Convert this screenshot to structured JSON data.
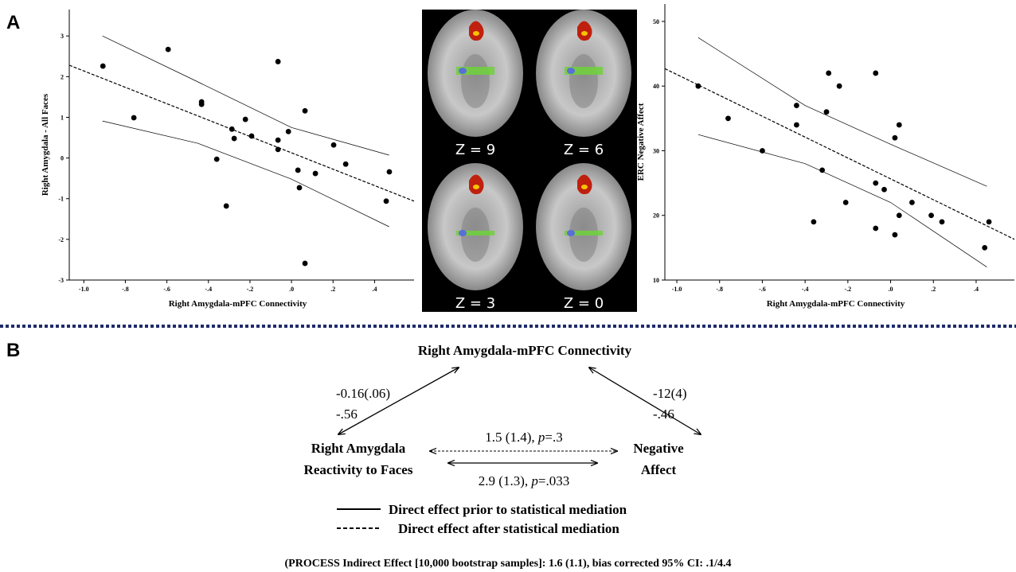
{
  "panel_labels": [
    "A",
    "B"
  ],
  "chart_data": [
    {
      "type": "scatter",
      "x_label": "Right Amygdala-mPFC Connectivity",
      "y_label": "Right Amygdala - All Faces",
      "color": "#000000",
      "x": [
        -0.908,
        -0.759,
        -0.594,
        -0.433,
        -0.433,
        -0.36,
        -0.314,
        -0.287,
        -0.276,
        -0.222,
        -0.192,
        -0.065,
        -0.065,
        -0.065,
        -0.015,
        0.031,
        0.038,
        0.065,
        0.065,
        0.115,
        0.203,
        0.261,
        0.456,
        0.471
      ],
      "y": [
        2.26,
        0.99,
        2.67,
        1.38,
        1.32,
        -0.03,
        -1.18,
        0.71,
        0.48,
        0.95,
        0.54,
        0.44,
        0.21,
        2.37,
        0.65,
        -0.3,
        -0.73,
        1.16,
        -2.59,
        -0.38,
        0.32,
        -0.15,
        -1.06,
        -0.34
      ],
      "xlim": [
        -1.07,
        0.59
      ],
      "ylim": [
        -3,
        3.65
      ],
      "xticks": [
        {
          "value": -1.0,
          "label": "-1.0"
        },
        {
          "value": -0.8,
          "label": "-.8"
        },
        {
          "value": -0.6,
          "label": "-.6"
        },
        {
          "value": -0.4,
          "label": "-.4"
        },
        {
          "value": -0.2,
          "label": "-.2"
        },
        {
          "value": 0,
          "label": ".0"
        },
        {
          "value": 0.2,
          "label": ".2"
        },
        {
          "value": 0.4,
          "label": ".4"
        }
      ],
      "yticks": [
        -3,
        -2,
        -1,
        0,
        1,
        2,
        3
      ],
      "fit_line": {
        "style": "dashed",
        "x": [
          -1.07,
          0.59
        ],
        "y": [
          2.28,
          -1.06
        ]
      },
      "ci_upper": {
        "x": [
          -0.91,
          -0.45,
          0,
          0.47
        ],
        "y": [
          3.0,
          1.87,
          0.75,
          0.07
        ]
      },
      "ci_lower": {
        "x": [
          -0.91,
          -0.45,
          0,
          0.47
        ],
        "y": [
          0.91,
          0.36,
          -0.52,
          -1.69
        ]
      }
    },
    {
      "type": "scatter",
      "x_label": "Right Amygdala-mPFC Connectivity",
      "y_label": "ERC Negative Affect",
      "color": "#000000",
      "x": [
        -0.9,
        -0.76,
        -0.6,
        -0.44,
        -0.44,
        -0.32,
        -0.36,
        -0.3,
        -0.29,
        -0.24,
        -0.21,
        -0.07,
        -0.07,
        -0.07,
        -0.03,
        0.02,
        0.02,
        0.04,
        0.04,
        0.1,
        0.19,
        0.24,
        0.44,
        0.46
      ],
      "y": [
        40,
        35,
        30,
        37,
        34,
        27,
        19,
        36,
        42,
        40,
        22,
        42,
        25,
        18,
        24,
        32,
        17,
        34,
        20,
        22,
        20,
        19,
        15,
        19
      ],
      "xlim": [
        -1.056,
        0.579
      ],
      "ylim": [
        10,
        52.7
      ],
      "xticks": [
        {
          "value": -1.0,
          "label": "-1.0"
        },
        {
          "value": -0.8,
          "label": "-.8"
        },
        {
          "value": -0.6,
          "label": "-.6"
        },
        {
          "value": -0.4,
          "label": "-.4"
        },
        {
          "value": -0.2,
          "label": "-.2"
        },
        {
          "value": 0,
          "label": ".0"
        },
        {
          "value": 0.2,
          "label": ".2"
        },
        {
          "value": 0.4,
          "label": ".4"
        }
      ],
      "yticks": [
        10,
        20,
        30,
        40,
        50
      ],
      "fit_line": {
        "style": "dashed",
        "x": [
          -1.056,
          0.579
        ],
        "y": [
          42.7,
          16.3
        ]
      },
      "ci_upper": {
        "x": [
          -0.9,
          -0.4,
          0,
          0.45
        ],
        "y": [
          47.5,
          37,
          31,
          24.5
        ]
      },
      "ci_lower": {
        "x": [
          -0.9,
          -0.4,
          0,
          0.45
        ],
        "y": [
          32.5,
          28,
          22,
          12
        ]
      }
    }
  ],
  "brain_images": {
    "slices": [
      "Z = 9",
      "Z = 6",
      "Z = 3",
      "Z = 0"
    ]
  },
  "diagram": {
    "top_node": "Right Amygdala-mPFC Connectivity",
    "left_node": [
      "Right Amygdala",
      "Reactivity to Faces"
    ],
    "right_node": [
      "Negative",
      "Affect"
    ],
    "left_path": [
      "-0.16(.06)",
      "-.56"
    ],
    "right_path": [
      "-12(4)",
      "-.46"
    ],
    "direct_after": [
      "1.5 (1.4), ",
      "p",
      "=.3"
    ],
    "direct_prior": [
      "2.9 (1.3), ",
      "p",
      "=.033"
    ],
    "legend": [
      "Direct effect prior to statistical mediation",
      "Direct effect after statistical mediation"
    ],
    "footnote": "(PROCESS Indirect Effect [10,000 bootstrap samples]: 1.6 (1.1), bias corrected 95% CI: .1/4.4"
  }
}
